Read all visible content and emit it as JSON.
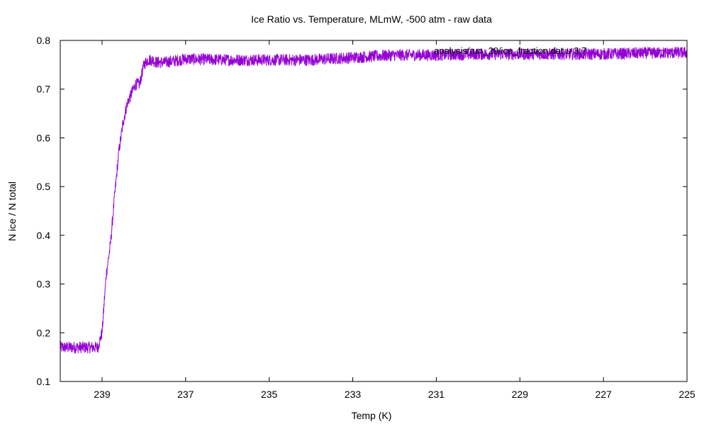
{
  "chart_data": {
    "type": "line",
    "title": "Ice Ratio vs. Temperature, MLmW, -500 atm - raw data",
    "xlabel": "Temp (K)",
    "ylabel": "N ice / N total",
    "x_reversed": true,
    "xlim": [
      240,
      225
    ],
    "ylim": [
      0.1,
      0.8
    ],
    "xticks": [
      239,
      237,
      235,
      233,
      231,
      229,
      227,
      225
    ],
    "yticks": [
      0.1,
      0.2,
      0.3,
      0.4,
      0.5,
      0.6,
      0.7,
      0.8
    ],
    "grid": false,
    "legend_position": "top-right",
    "series": [
      {
        "name": "analysis/run_29/ice_fraction.dat u 3:7",
        "color": "#9400d3",
        "noise": 0.012,
        "x": [
          240.0,
          239.5,
          239.1,
          239.0,
          238.9,
          238.8,
          238.7,
          238.6,
          238.5,
          238.4,
          238.3,
          238.2,
          238.1,
          238.0,
          237.9,
          237.8,
          237.7,
          237.5,
          237.0,
          236.0,
          235.0,
          234.0,
          233.0,
          232.0,
          231.0,
          230.0,
          229.0,
          228.0,
          227.0,
          226.0,
          225.0
        ],
        "y": [
          0.17,
          0.17,
          0.17,
          0.2,
          0.32,
          0.38,
          0.48,
          0.57,
          0.63,
          0.67,
          0.69,
          0.71,
          0.71,
          0.75,
          0.76,
          0.76,
          0.755,
          0.755,
          0.762,
          0.76,
          0.76,
          0.76,
          0.765,
          0.77,
          0.77,
          0.772,
          0.772,
          0.772,
          0.772,
          0.774,
          0.775
        ]
      }
    ]
  }
}
